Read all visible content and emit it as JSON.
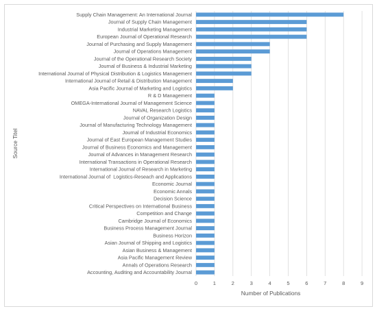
{
  "chart_data": {
    "type": "bar",
    "orientation": "horizontal",
    "xlabel": "Number of Publications",
    "ylabel": "Source Titel",
    "xlim": [
      0,
      9
    ],
    "xticks": [
      0,
      1,
      2,
      3,
      4,
      5,
      6,
      7,
      8,
      9
    ],
    "grid": true,
    "bar_color": "#5b9bd5",
    "categories": [
      "Supply Chain Management: An International Journal",
      "Journal of Supply Chain Management",
      "Industrial Marketing Management",
      "European Journal of Operational Research",
      "Journal of Purchasing and Supply Management",
      "Journal of Operations Management",
      "Journal of the Operational Research Society",
      "Journal of Business & Industrial Marketing",
      "International Journal of Physical Distribution & Logistics Management",
      "International Journal of Retail & Distribution Management",
      "Asia Pacific Journal of Marketing and Logistics",
      "R & D Management",
      "OMEGA-International Journal of Management Science",
      "NAVAL Research Logistics",
      "Journal of Organization Design",
      "Journal of Manufacturing Technology Management",
      "Journal of Industrial Economics",
      "Journal of East European Management Studies",
      "Journal of Business Economics and Management",
      "Journal of Advances in Management Research",
      "International Transactions in Operational Research",
      "International Journal of Research in Marketing",
      "International Journal of  Logistics-Reseach and Applications",
      "Economic Journal",
      "Economic Annals",
      "Decision Science",
      "Critical Perspectives on International Business",
      "Competition and Change",
      "Cambridge Journal of Economics",
      "Business Process Management Journal",
      "Business Horizon",
      "Asian Journal of Shipping and Logistics",
      "Asian Business & Management",
      "Asia Pacific Management Review",
      "Annals of Operations Research",
      "Accounting, Auditing and Accountability Journal"
    ],
    "values": [
      8,
      6,
      6,
      6,
      4,
      4,
      3,
      3,
      3,
      2,
      2,
      1,
      1,
      1,
      1,
      1,
      1,
      1,
      1,
      1,
      1,
      1,
      1,
      1,
      1,
      1,
      1,
      1,
      1,
      1,
      1,
      1,
      1,
      1,
      1,
      1
    ]
  }
}
